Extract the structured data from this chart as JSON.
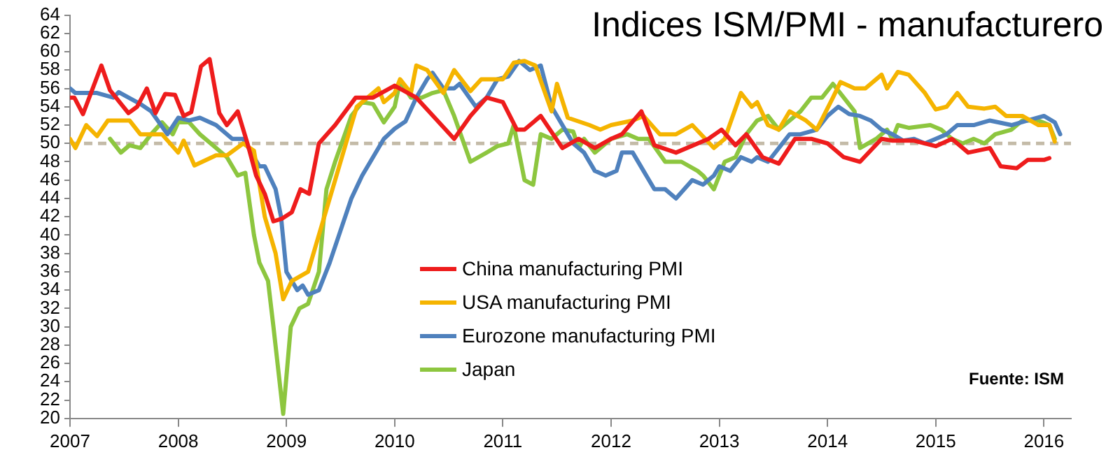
{
  "chart_data": {
    "type": "line",
    "title": "Indices ISM/PMI - manufacturero",
    "xlim": [
      2007,
      2016.25
    ],
    "xticks": [
      2007,
      2008,
      2009,
      2010,
      2011,
      2012,
      2013,
      2014,
      2015,
      2016
    ],
    "ylim": [
      20,
      64
    ],
    "yticks": [
      20,
      22,
      24,
      26,
      28,
      30,
      32,
      34,
      36,
      38,
      40,
      42,
      44,
      46,
      48,
      50,
      52,
      54,
      56,
      58,
      60,
      62,
      64
    ],
    "grid": false,
    "legend": "bottom",
    "marker": "none",
    "line_style": "solid",
    "ref_lines": [
      {
        "axis": "y",
        "value": 50,
        "label": null,
        "color": "#c4bba8",
        "line_style": "dashed"
      }
    ],
    "annotations": [
      "Fuente: ISM"
    ],
    "series": [
      {
        "name": "China manufacturing PMI",
        "color": "#ee1c1c",
        "x": [
          2007.0,
          2007.04,
          2007.12,
          2007.29,
          2007.37,
          2007.54,
          2007.62,
          2007.71,
          2007.79,
          2007.88,
          2007.97,
          2008.05,
          2008.12,
          2008.21,
          2008.29,
          2008.38,
          2008.45,
          2008.55,
          2008.64,
          2008.72,
          2008.8,
          2008.88,
          2008.96,
          2009.05,
          2009.13,
          2009.21,
          2009.3,
          2009.45,
          2009.64,
          2009.8,
          2010.0,
          2010.2,
          2010.55,
          2010.7,
          2010.85,
          2011.0,
          2011.13,
          2011.2,
          2011.35,
          2011.55,
          2011.7,
          2011.85,
          2012.0,
          2012.1,
          2012.28,
          2012.4,
          2012.6,
          2012.9,
          2013.02,
          2013.15,
          2013.25,
          2013.4,
          2013.55,
          2013.7,
          2013.85,
          2014.0,
          2014.15,
          2014.3,
          2014.5,
          2014.6,
          2014.8,
          2015.0,
          2015.15,
          2015.3,
          2015.5,
          2015.6,
          2015.75,
          2015.85,
          2016.0,
          2016.05
        ],
        "values": [
          55,
          55,
          53.2,
          58.5,
          55.8,
          53.3,
          54,
          56,
          53.3,
          55.4,
          55.3,
          53,
          53.4,
          58.4,
          59.2,
          53.3,
          52,
          53.5,
          50,
          46.5,
          44.5,
          41.5,
          41.8,
          42.5,
          45,
          44.5,
          50,
          52,
          55,
          55,
          56.3,
          55,
          50.5,
          53,
          55,
          54.5,
          51.5,
          51.5,
          53,
          49.5,
          50.5,
          49.5,
          50.5,
          51,
          53.5,
          49.8,
          49,
          50.5,
          51.5,
          49.8,
          51,
          48.5,
          47.8,
          50.5,
          50.5,
          50,
          48.5,
          48,
          50.5,
          50.3,
          50.3,
          49.7,
          50.5,
          49,
          49.5,
          47.5,
          47.3,
          48.2,
          48.2,
          48.4
        ]
      },
      {
        "name": "USA manufacturing PMI",
        "color": "#f5b400",
        "x": [
          2007.0,
          2007.05,
          2007.15,
          2007.25,
          2007.35,
          2007.55,
          2007.65,
          2007.85,
          2008.0,
          2008.05,
          2008.15,
          2008.35,
          2008.45,
          2008.6,
          2008.7,
          2008.8,
          2008.9,
          2008.97,
          2009.05,
          2009.2,
          2009.3,
          2009.5,
          2009.65,
          2009.85,
          2009.9,
          2010.0,
          2010.05,
          2010.15,
          2010.2,
          2010.3,
          2010.45,
          2010.55,
          2010.7,
          2010.8,
          2011.0,
          2011.1,
          2011.2,
          2011.3,
          2011.45,
          2011.5,
          2011.6,
          2011.8,
          2011.9,
          2012.0,
          2012.2,
          2012.3,
          2012.45,
          2012.6,
          2012.75,
          2012.95,
          2013.05,
          2013.2,
          2013.3,
          2013.35,
          2013.45,
          2013.55,
          2013.65,
          2013.8,
          2013.9,
          2014.05,
          2014.12,
          2014.25,
          2014.35,
          2014.5,
          2014.55,
          2014.65,
          2014.75,
          2014.9,
          2015.0,
          2015.1,
          2015.2,
          2015.3,
          2015.45,
          2015.55,
          2015.65,
          2015.8,
          2015.95,
          2016.05,
          2016.1
        ],
        "values": [
          50.5,
          49.5,
          52,
          50.8,
          52.5,
          52.5,
          51,
          51,
          49,
          50.3,
          47.6,
          48.7,
          48.7,
          50,
          49.2,
          42,
          38,
          33,
          35,
          36,
          40,
          48,
          54,
          56,
          54.5,
          55.5,
          57,
          55.5,
          58.5,
          58,
          55.5,
          58,
          55.7,
          57,
          57,
          58.8,
          59,
          58.5,
          53.5,
          56.5,
          52.8,
          52,
          51.5,
          52,
          52.5,
          53,
          51,
          51,
          52,
          49.5,
          50.5,
          55.5,
          54,
          54.5,
          52,
          51.5,
          53.5,
          52.5,
          51.5,
          55,
          56.7,
          56,
          56,
          57.5,
          56,
          57.8,
          57.5,
          55.5,
          53.7,
          54,
          55.5,
          54,
          53.8,
          54,
          53,
          53,
          52,
          52,
          50.2
        ]
      },
      {
        "name": "Eurozone manufacturing PMI",
        "color": "#4f81bd",
        "x": [
          2007.0,
          2007.05,
          2007.25,
          2007.4,
          2007.45,
          2007.65,
          2007.75,
          2007.9,
          2008.0,
          2008.1,
          2008.2,
          2008.35,
          2008.5,
          2008.6,
          2008.75,
          2008.8,
          2008.9,
          2008.95,
          2009.0,
          2009.1,
          2009.15,
          2009.2,
          2009.3,
          2009.4,
          2009.5,
          2009.6,
          2009.7,
          2009.8,
          2009.9,
          2010.0,
          2010.1,
          2010.2,
          2010.3,
          2010.35,
          2010.45,
          2010.55,
          2010.6,
          2010.75,
          2010.85,
          2010.95,
          2011.05,
          2011.15,
          2011.25,
          2011.35,
          2011.45,
          2011.55,
          2011.65,
          2011.75,
          2011.85,
          2011.95,
          2012.05,
          2012.1,
          2012.2,
          2012.3,
          2012.4,
          2012.5,
          2012.6,
          2012.75,
          2012.85,
          2012.95,
          2013.0,
          2013.1,
          2013.2,
          2013.3,
          2013.35,
          2013.45,
          2013.55,
          2013.65,
          2013.75,
          2013.9,
          2014.0,
          2014.1,
          2014.2,
          2014.3,
          2014.4,
          2014.5,
          2014.6,
          2014.7,
          2014.8,
          2014.9,
          2015.0,
          2015.1,
          2015.2,
          2015.35,
          2015.5,
          2015.7,
          2015.85,
          2016.0,
          2016.1,
          2016.15
        ],
        "values": [
          56,
          55.5,
          55.5,
          55,
          55.6,
          54.3,
          53.5,
          51,
          52.8,
          52.5,
          52.8,
          52,
          50.5,
          50.5,
          47.5,
          47.5,
          45,
          42,
          36,
          34,
          34.5,
          33.5,
          34,
          37,
          40.5,
          44,
          46.5,
          48.5,
          50.5,
          51.6,
          52.4,
          55,
          57,
          57.7,
          56,
          56,
          56.5,
          54,
          55,
          57,
          57.3,
          59,
          58,
          58.5,
          54,
          52,
          50,
          49,
          47,
          46.5,
          47,
          49,
          49,
          47,
          45,
          45,
          44,
          46,
          45.5,
          46.5,
          47.5,
          47,
          48.5,
          48,
          48.5,
          48,
          49.5,
          51,
          51,
          51.5,
          53,
          54,
          53.2,
          53,
          52.5,
          51.5,
          51,
          50.3,
          50.5,
          50,
          50.5,
          51,
          52,
          52,
          52.5,
          52,
          52.5,
          53,
          52.3,
          51
        ]
      },
      {
        "name": "Japan",
        "color": "#8dc63f",
        "x": [
          2007.37,
          2007.47,
          2007.55,
          2007.65,
          2007.75,
          2007.85,
          2007.95,
          2008.0,
          2008.1,
          2008.2,
          2008.35,
          2008.45,
          2008.55,
          2008.62,
          2008.7,
          2008.75,
          2008.83,
          2008.88,
          2008.97,
          2009.04,
          2009.12,
          2009.2,
          2009.3,
          2009.37,
          2009.45,
          2009.6,
          2009.7,
          2009.8,
          2009.9,
          2010.0,
          2010.05,
          2010.15,
          2010.25,
          2010.35,
          2010.45,
          2010.55,
          2010.7,
          2010.85,
          2010.95,
          2011.05,
          2011.1,
          2011.2,
          2011.28,
          2011.35,
          2011.45,
          2011.55,
          2011.65,
          2011.7,
          2011.75,
          2011.85,
          2012.0,
          2012.15,
          2012.25,
          2012.35,
          2012.5,
          2012.65,
          2012.8,
          2012.85,
          2012.95,
          2013.05,
          2013.15,
          2013.25,
          2013.35,
          2013.45,
          2013.55,
          2013.65,
          2013.75,
          2013.85,
          2013.95,
          2014.05,
          2014.15,
          2014.25,
          2014.3,
          2014.45,
          2014.55,
          2014.6,
          2014.65,
          2014.75,
          2014.95,
          2015.05,
          2015.15,
          2015.25,
          2015.35,
          2015.45,
          2015.55,
          2015.7,
          2015.8,
          2015.95,
          2016.05,
          2016.1
        ],
        "values": [
          50.5,
          49,
          49.8,
          49.5,
          51,
          52.3,
          51,
          52.3,
          52.3,
          51,
          49.5,
          48.5,
          46.5,
          46.8,
          40,
          37,
          35,
          30,
          20.5,
          30,
          32,
          32.5,
          36,
          45,
          48,
          53,
          54.5,
          54.3,
          52.3,
          54,
          56.8,
          55,
          55,
          55.5,
          55.8,
          53,
          48,
          49,
          49.7,
          50,
          52,
          46,
          45.5,
          51,
          50.5,
          51.5,
          51.3,
          49.5,
          50.5,
          49,
          50.5,
          51,
          50.5,
          50.5,
          48,
          48,
          47,
          46.5,
          45,
          48,
          48.5,
          51,
          52.5,
          53,
          51.5,
          52.5,
          53.5,
          55,
          55,
          56.5,
          55,
          53.5,
          49.5,
          50.5,
          51.5,
          50.5,
          52,
          51.7,
          52,
          51.5,
          50.5,
          50,
          50.5,
          50,
          51,
          51.5,
          52.5,
          52.5,
          52,
          50.5
        ]
      }
    ]
  }
}
